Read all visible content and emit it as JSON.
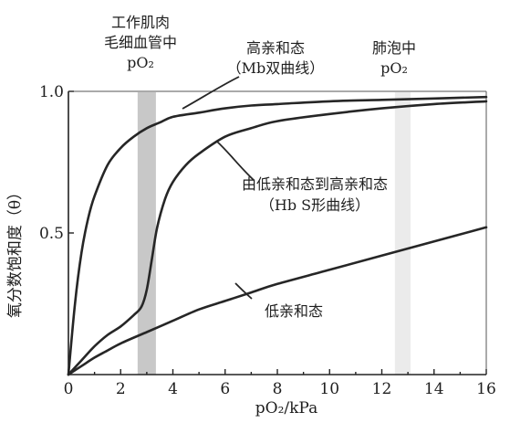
{
  "chart_data": {
    "type": "line",
    "xlabel": "pO₂/kPa",
    "ylabel": "氧分数饱和度（θ）",
    "xlim": [
      0,
      16
    ],
    "ylim": [
      0,
      1.0
    ],
    "x_ticks": [
      "0",
      "2",
      "4",
      "6",
      "8",
      "10",
      "12",
      "14",
      "16"
    ],
    "y_ticks": [
      "0.5",
      "1.0"
    ],
    "series": [
      {
        "name": "高亲和态（Mb双曲线）",
        "color": "#262626",
        "x": [
          0,
          0.25,
          0.5,
          0.75,
          1,
          1.5,
          2,
          2.5,
          3,
          3.5,
          4,
          5,
          6,
          7,
          8,
          10,
          12,
          14,
          16
        ],
        "y": [
          0,
          0.25,
          0.43,
          0.55,
          0.63,
          0.74,
          0.8,
          0.84,
          0.87,
          0.89,
          0.91,
          0.925,
          0.94,
          0.95,
          0.955,
          0.965,
          0.97,
          0.975,
          0.98
        ]
      },
      {
        "name": "由低亲和态到高亲和态（Hb S形曲线）",
        "color": "#262626",
        "x": [
          0,
          0.5,
          1,
          1.5,
          2,
          2.5,
          2.8,
          3.0,
          3.2,
          3.4,
          3.7,
          4,
          4.5,
          5,
          6,
          7,
          8,
          10,
          12,
          14,
          16
        ],
        "y": [
          0,
          0.05,
          0.1,
          0.14,
          0.17,
          0.21,
          0.24,
          0.3,
          0.41,
          0.52,
          0.62,
          0.68,
          0.74,
          0.78,
          0.84,
          0.87,
          0.895,
          0.92,
          0.94,
          0.955,
          0.965
        ]
      },
      {
        "name": "低亲和态",
        "color": "#262626",
        "x": [
          0,
          0.5,
          1,
          1.5,
          2,
          3,
          4,
          5,
          6,
          7,
          8,
          10,
          12,
          14,
          16
        ],
        "y": [
          0,
          0.03,
          0.06,
          0.085,
          0.11,
          0.15,
          0.19,
          0.23,
          0.26,
          0.29,
          0.32,
          0.37,
          0.42,
          0.47,
          0.52
        ]
      }
    ],
    "bands": [
      {
        "x": [
          2.65,
          3.35
        ],
        "label_lines": [
          "工作肌肉",
          "毛细血管中",
          "pO₂"
        ],
        "color": "#c8c8c8"
      },
      {
        "x": [
          12.5,
          13.1
        ],
        "label_lines": [
          "肺泡中",
          "pO₂"
        ],
        "color": "#ebebeb"
      }
    ],
    "curve_annotations": [
      {
        "series": 0,
        "lines": [
          "高亲和态",
          "（Mb双曲线）"
        ]
      },
      {
        "series": 1,
        "lines": [
          "由低亲和态到高亲和态",
          "（Hb S形曲线）"
        ]
      },
      {
        "series": 2,
        "lines": [
          "低亲和态"
        ]
      }
    ],
    "grid": false
  }
}
